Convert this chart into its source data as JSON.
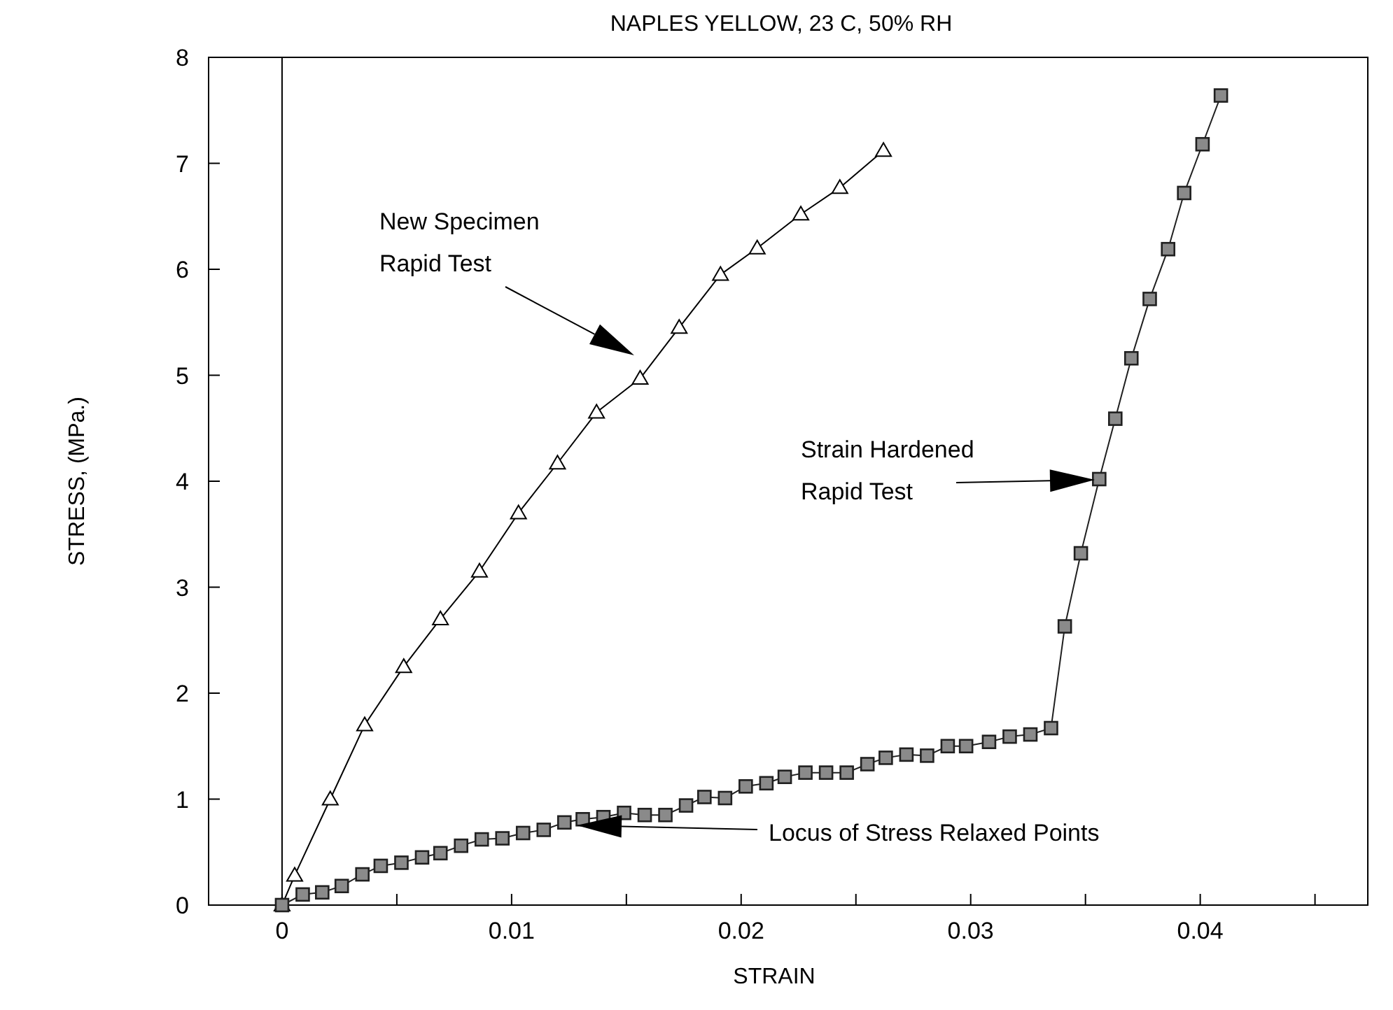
{
  "chart_data": {
    "type": "line",
    "title": "NAPLES YELLOW,  23 C, 50% RH",
    "xlabel": "STRAIN",
    "ylabel": "STRESS, (MPa.)",
    "xlim": [
      -0.0032,
      0.0473
    ],
    "ylim": [
      0,
      8
    ],
    "xticks": [
      0,
      {
        "value": 0.005,
        "label": null
      },
      0.01,
      {
        "value": 0.015,
        "label": null
      },
      0.02,
      {
        "value": 0.025,
        "label": null
      },
      0.03,
      {
        "value": 0.035,
        "label": null
      },
      0.04,
      {
        "value": 0.045,
        "label": null
      }
    ],
    "yticks": [
      0,
      1,
      2,
      3,
      4,
      5,
      6,
      7,
      8
    ],
    "grid": false,
    "line_style": "solid",
    "ref_lines": [
      {
        "axis": "x",
        "value": 0,
        "color": "#000000"
      }
    ],
    "series": [
      {
        "color": "#000000",
        "marker": "triangle",
        "x": [
          0,
          0.00055,
          0.0021,
          0.0036,
          0.0053,
          0.0069,
          0.0086,
          0.0103,
          0.012,
          0.0137,
          0.0156,
          0.0173,
          0.0191,
          0.0207,
          0.0226,
          0.0243,
          0.0262
        ],
        "values": [
          0,
          0.28,
          1.0,
          1.7,
          2.25,
          2.7,
          3.15,
          3.7,
          4.17,
          4.65,
          4.97,
          5.45,
          5.95,
          6.2,
          6.52,
          6.77,
          7.12
        ]
      },
      {
        "color": "#8a8a8a",
        "marker": "square",
        "x": [
          0,
          0.0009,
          0.00175,
          0.0026,
          0.0035,
          0.0043,
          0.0052,
          0.0061,
          0.0069,
          0.0078,
          0.0087,
          0.0096,
          0.0105,
          0.0114,
          0.0123,
          0.0131,
          0.014,
          0.0149,
          0.0158,
          0.0167,
          0.0176,
          0.0184,
          0.0193,
          0.0202,
          0.0211,
          0.0219,
          0.0228,
          0.0237,
          0.0246,
          0.0255,
          0.0263,
          0.0272,
          0.0281,
          0.029,
          0.0298,
          0.0308,
          0.0317,
          0.0326,
          0.0335,
          0.0341,
          0.0348,
          0.0356,
          0.0363,
          0.037,
          0.0378,
          0.0386,
          0.0393,
          0.0401,
          0.0409
        ],
        "values": [
          0,
          0.1,
          0.12,
          0.18,
          0.29,
          0.37,
          0.4,
          0.45,
          0.49,
          0.56,
          0.62,
          0.63,
          0.68,
          0.71,
          0.78,
          0.81,
          0.83,
          0.87,
          0.85,
          0.85,
          0.94,
          1.02,
          1.01,
          1.12,
          1.15,
          1.21,
          1.25,
          1.25,
          1.25,
          1.33,
          1.39,
          1.42,
          1.41,
          1.5,
          1.5,
          1.54,
          1.59,
          1.61,
          1.67,
          2.63,
          3.32,
          4.02,
          4.59,
          5.16,
          5.72,
          6.19,
          6.72,
          7.18,
          7.64
        ]
      }
    ],
    "annotations": [
      "New Specimen\nRapid Test",
      "Strain Hardened\nRapid Test",
      "Locus of Stress Relaxed Points"
    ]
  }
}
